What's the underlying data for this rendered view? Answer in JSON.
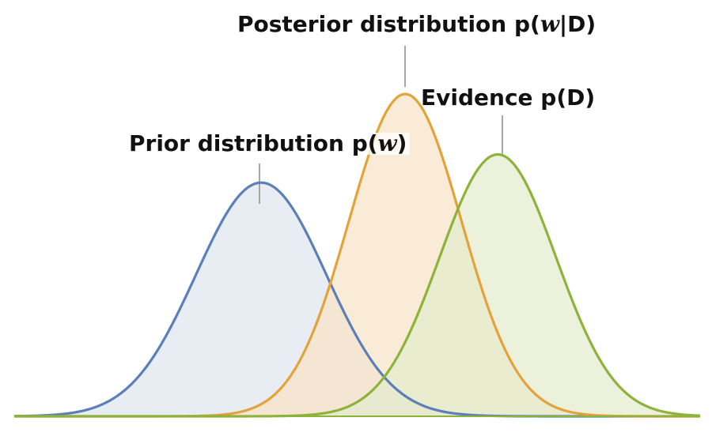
{
  "colors": {
    "prior": "#5b7fb8",
    "prior_fill": "#dfe4ef",
    "posterior": "#e3a33a",
    "posterior_fill": "#f8e3c6",
    "evidence": "#8db33a",
    "evidence_fill": "#e3ebcd",
    "leader": "#a6a6a6",
    "baseline": "#8db33a"
  },
  "curves": [
    {
      "name": "prior",
      "mean": 0.36,
      "sd": 0.095,
      "peak": 0.58
    },
    {
      "name": "posterior",
      "mean": 0.57,
      "sd": 0.082,
      "peak": 0.8
    },
    {
      "name": "evidence",
      "mean": 0.705,
      "sd": 0.085,
      "peak": 0.65
    }
  ],
  "labels": {
    "posterior": {
      "text": "Posterior distribution p(",
      "var": "w",
      "suffix": "|D)"
    },
    "evidence": {
      "text": "Evidence p(D)"
    },
    "prior": {
      "text": "Prior distribution p(",
      "var": "w",
      "suffix": ")"
    }
  }
}
